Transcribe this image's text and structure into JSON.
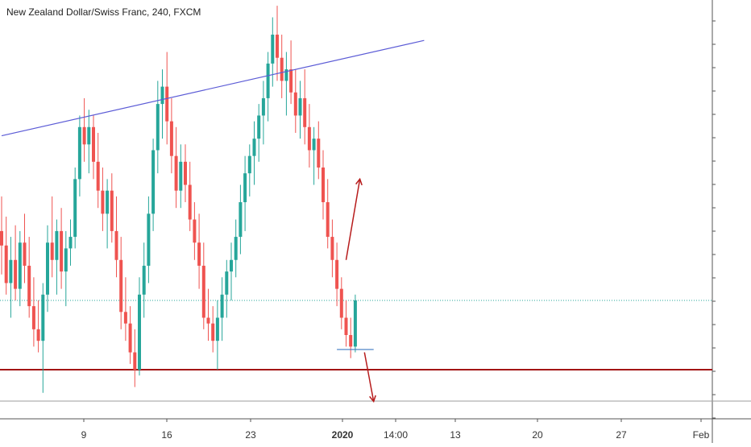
{
  "title": "New Zealand Dollar/Swiss Franc, 240, FXCM",
  "colors": {
    "up": "#26a69a",
    "down": "#ef5350",
    "trendline": "#5b5bd6",
    "support": "#a31515",
    "arrow": "#b71c1c",
    "last_price_line": "#26a69a",
    "low_marker": "#3d79c2",
    "axis": "#555555"
  },
  "chart_data": {
    "type": "candlestick",
    "symbol": "NZDCHF",
    "timeframe": "240",
    "x_ticks": [
      "9",
      "16",
      "23",
      "2020",
      "14:00",
      "13",
      "20",
      "27",
      "Feb"
    ],
    "ylim": [
      0.6435,
      0.658
    ],
    "candles": [
      [
        0.65,
        0.6512,
        0.6485,
        0.6495
      ],
      [
        0.6495,
        0.6505,
        0.6478,
        0.6482
      ],
      [
        0.6482,
        0.6498,
        0.647,
        0.649
      ],
      [
        0.649,
        0.6502,
        0.6476,
        0.648
      ],
      [
        0.648,
        0.65,
        0.6474,
        0.6496
      ],
      [
        0.6496,
        0.6506,
        0.6482,
        0.6488
      ],
      [
        0.6488,
        0.6498,
        0.647,
        0.6474
      ],
      [
        0.6474,
        0.6484,
        0.646,
        0.6466
      ],
      [
        0.6466,
        0.6476,
        0.6458,
        0.6462
      ],
      [
        0.6462,
        0.6482,
        0.6444,
        0.6478
      ],
      [
        0.6478,
        0.6502,
        0.6472,
        0.6496
      ],
      [
        0.6496,
        0.6512,
        0.6484,
        0.649
      ],
      [
        0.649,
        0.6504,
        0.6478,
        0.65
      ],
      [
        0.65,
        0.6508,
        0.648,
        0.6486
      ],
      [
        0.6486,
        0.65,
        0.6474,
        0.6494
      ],
      [
        0.6494,
        0.6504,
        0.6488,
        0.6498
      ],
      [
        0.6498,
        0.6522,
        0.6494,
        0.6518
      ],
      [
        0.6518,
        0.654,
        0.6512,
        0.6536
      ],
      [
        0.6536,
        0.6546,
        0.6524,
        0.653
      ],
      [
        0.653,
        0.6542,
        0.652,
        0.6536
      ],
      [
        0.6536,
        0.654,
        0.6518,
        0.6524
      ],
      [
        0.6524,
        0.6534,
        0.6508,
        0.6514
      ],
      [
        0.6514,
        0.6522,
        0.65,
        0.6506
      ],
      [
        0.6506,
        0.6518,
        0.6494,
        0.6514
      ],
      [
        0.6514,
        0.652,
        0.6496,
        0.65
      ],
      [
        0.65,
        0.6512,
        0.6484,
        0.649
      ],
      [
        0.649,
        0.6498,
        0.6466,
        0.6472
      ],
      [
        0.6472,
        0.6484,
        0.6462,
        0.6468
      ],
      [
        0.6468,
        0.6474,
        0.6454,
        0.6458
      ],
      [
        0.6458,
        0.6466,
        0.6446,
        0.6452
      ],
      [
        0.6452,
        0.6484,
        0.645,
        0.6478
      ],
      [
        0.6478,
        0.6496,
        0.647,
        0.6488
      ],
      [
        0.6488,
        0.6512,
        0.6482,
        0.6506
      ],
      [
        0.6506,
        0.6532,
        0.65,
        0.6528
      ],
      [
        0.6528,
        0.6552,
        0.652,
        0.6544
      ],
      [
        0.6544,
        0.6556,
        0.6532,
        0.655
      ],
      [
        0.655,
        0.6562,
        0.653,
        0.6538
      ],
      [
        0.6538,
        0.6546,
        0.652,
        0.6526
      ],
      [
        0.6526,
        0.6536,
        0.6508,
        0.6514
      ],
      [
        0.6514,
        0.653,
        0.6508,
        0.6524
      ],
      [
        0.6524,
        0.653,
        0.651,
        0.6516
      ],
      [
        0.6516,
        0.6524,
        0.65,
        0.6504
      ],
      [
        0.6504,
        0.651,
        0.649,
        0.6496
      ],
      [
        0.6496,
        0.6506,
        0.648,
        0.6488
      ],
      [
        0.6488,
        0.6496,
        0.6466,
        0.647
      ],
      [
        0.647,
        0.648,
        0.6462,
        0.6468
      ],
      [
        0.6468,
        0.6474,
        0.6458,
        0.6462
      ],
      [
        0.6462,
        0.6476,
        0.6452,
        0.647
      ],
      [
        0.647,
        0.6484,
        0.6462,
        0.6478
      ],
      [
        0.6478,
        0.649,
        0.647,
        0.6486
      ],
      [
        0.6486,
        0.6496,
        0.6476,
        0.649
      ],
      [
        0.649,
        0.6504,
        0.6484,
        0.6498
      ],
      [
        0.6498,
        0.6516,
        0.6492,
        0.651
      ],
      [
        0.651,
        0.6526,
        0.65,
        0.652
      ],
      [
        0.652,
        0.653,
        0.6512,
        0.6526
      ],
      [
        0.6526,
        0.6538,
        0.6516,
        0.6532
      ],
      [
        0.6532,
        0.6544,
        0.6524,
        0.654
      ],
      [
        0.654,
        0.6552,
        0.653,
        0.6546
      ],
      [
        0.6546,
        0.6562,
        0.6538,
        0.6558
      ],
      [
        0.6558,
        0.6574,
        0.655,
        0.6568
      ],
      [
        0.6568,
        0.6578,
        0.6552,
        0.656
      ],
      [
        0.656,
        0.6568,
        0.6546,
        0.6552
      ],
      [
        0.6552,
        0.6562,
        0.654,
        0.6556
      ],
      [
        0.6556,
        0.6566,
        0.6544,
        0.6548
      ],
      [
        0.6548,
        0.6556,
        0.6534,
        0.654
      ],
      [
        0.654,
        0.6552,
        0.6532,
        0.6546
      ],
      [
        0.6546,
        0.6556,
        0.653,
        0.6536
      ],
      [
        0.6536,
        0.6544,
        0.6522,
        0.6528
      ],
      [
        0.6528,
        0.6536,
        0.6516,
        0.6532
      ],
      [
        0.6532,
        0.6538,
        0.6518,
        0.6522
      ],
      [
        0.6522,
        0.6528,
        0.6504,
        0.651
      ],
      [
        0.651,
        0.6518,
        0.6494,
        0.6498
      ],
      [
        0.6498,
        0.6504,
        0.6484,
        0.649
      ],
      [
        0.649,
        0.6496,
        0.6474,
        0.648
      ],
      [
        0.648,
        0.6484,
        0.6466,
        0.647
      ],
      [
        0.647,
        0.6476,
        0.646,
        0.6464
      ],
      [
        0.6464,
        0.647,
        0.6456,
        0.646
      ],
      [
        0.646,
        0.6478,
        0.6458,
        0.6476
      ]
    ],
    "last_price": 0.6476,
    "annotations": {
      "trendline": {
        "from": [
          0,
          0.6533
        ],
        "to": [
          92,
          0.6566
        ]
      },
      "support_line": 0.6452,
      "low_marker": {
        "from": [
          73,
          0.6459
        ],
        "to": [
          81,
          0.6459
        ]
      },
      "arrow_up": {
        "from": [
          75,
          0.649
        ],
        "to": [
          78,
          0.6518
        ]
      },
      "arrow_down": {
        "from": [
          79,
          0.6458
        ],
        "to": [
          81,
          0.6441
        ]
      }
    },
    "grid": false
  }
}
